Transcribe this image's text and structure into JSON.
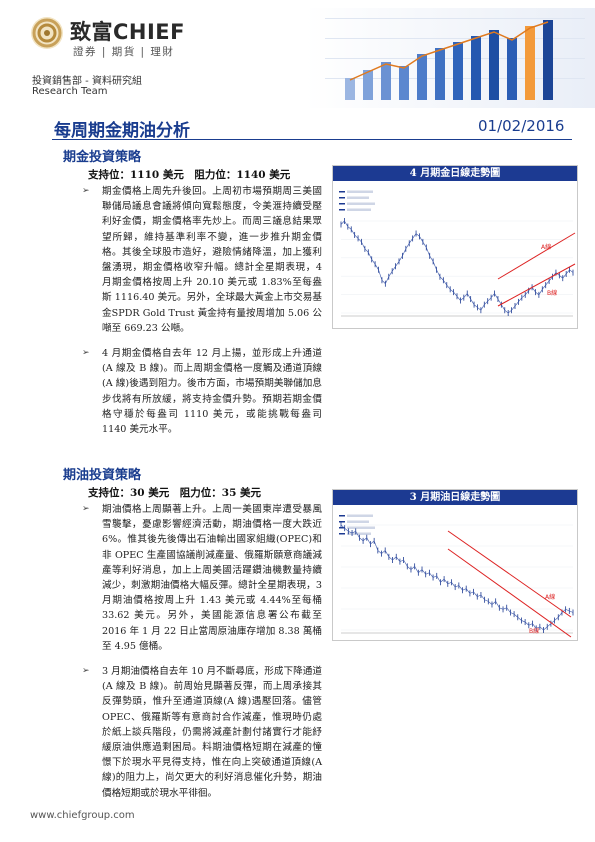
{
  "header": {
    "brand": "致富CHIEF",
    "brand_sub": "證券 | 期貨 | 理財",
    "dept": "投資銷售部 - 資料研究組",
    "team": "Research Team"
  },
  "report": {
    "title": "每周期金期油分析",
    "date": "01/02/2016"
  },
  "gold": {
    "heading": "期金投資策略",
    "levels": "支持位：1110 美元　阻力位：1140 美元",
    "bullets": [
      "期金價格上周先升後回。上周初市場預期周三美國聯儲局議息會議將傾向寬鬆態度，令美滙持續受壓利好金價，期金價格率先炒上。而周三議息結果眾望所歸，維持基準利率不變，進一步推升期金價格。其後全球股市造好，避險情緒降溫，加上獲利盤湧現，期金價格收窄升幅。總計全星期表現，4 月期金價格按周上升 20.10 美元或 1.83%至每盎斯 1116.40 美元。另外，全球最大黃金上市交易基金SPDR Gold Trust 黃金持有量按周增加 5.06 公噸至 669.23 公噸。",
      "4 月期金價格自去年 12 月上揚，並形成上升通道(A 線及 B 線)。而上周期金價格一度觸及通道頂線(A 線)後遇到阻力。後市方面，市場預期美聯儲加息步伐將有所放緩，將支持金價升勢。預期若期金價格守穩於每盎司 1110 美元，或能挑戰每盎司 1140 美元水平。"
    ],
    "chart_title": "4 月期金日線走勢圖",
    "line_a": "A線",
    "line_b": "B線"
  },
  "oil": {
    "heading": "期油投資策略",
    "levels": "支持位：30 美元　阻力位：35 美元",
    "bullets": [
      "期油價格上周顯著上升。上周一美國東岸遭受暴風雪襲擊，憂慮影響經濟活動，期油價格一度大跌近 6%。惟其後先後傳出石油輸出國家組織(OPEC)和非 OPEC 生產國協議削減產量、俄羅斯願意商議減產等利好消息，加上上周美國活躍鑽油機數量持續減少，刺激期油價格大幅反彈。總計全星期表現，3 月期油價格按周上升 1.43 美元或 4.44%至每桶 33.62 美元。另外，美國能源信息署公布截至 2016 年 1 月 22 日止當周原油庫存增加 8.38 萬桶至 4.95 億桶。",
      "3 月期油價格自去年 10 月不斷尋底，形成下降通道(A 線及 B 線)。前周始見顯著反彈，而上周承接其反彈勢頭，惟升至通道頂線(A 線)遇壓回落。儘管 OPEC、俄羅斯等有意商討合作減產，惟現時仍處於紙上談兵階段，仍需將減產計劃付諸實行才能紓緩原油供應過剩困局。料期油價格短期在減產的憧憬下於現水平見得支持，惟在向上突破通道頂線(A 線)的阻力上，尚欠更大的利好消息催化升勢，期油價格短期或於現水平徘徊。"
    ],
    "chart_title": "3 月期油日線走勢圖",
    "line_a": "A線",
    "line_b": "B線"
  },
  "footer": {
    "url": "www.chiefgroup.com"
  },
  "chart_data": [
    {
      "type": "line",
      "title": "4 月期金日線走勢圖",
      "series": [
        {
          "values": [
            1185,
            1190,
            1182,
            1178,
            1170,
            1165,
            1160,
            1150,
            1145,
            1135,
            1128,
            1120,
            1105,
            1100,
            1110,
            1118,
            1125,
            1132,
            1140,
            1150,
            1158,
            1165,
            1172,
            1168,
            1160,
            1152,
            1140,
            1132,
            1120,
            1110,
            1105,
            1098,
            1092,
            1088,
            1082,
            1076,
            1080,
            1086,
            1078,
            1070,
            1066,
            1062,
            1070,
            1075,
            1080,
            1086,
            1078,
            1070,
            1062,
            1058,
            1062,
            1068,
            1074,
            1080,
            1084,
            1090,
            1095,
            1088,
            1084,
            1092,
            1098,
            1104,
            1110,
            1116,
            1112,
            1108,
            1114,
            1120,
            1116
          ]
        }
      ],
      "annotations": [
        "A線",
        "B線"
      ]
    },
    {
      "type": "line",
      "title": "3 月期油日線走勢圖",
      "series": [
        {
          "values": [
            60,
            59,
            58,
            57.5,
            58,
            56,
            55,
            56,
            54,
            55,
            52,
            51,
            52,
            50,
            49,
            50,
            48.5,
            49,
            47,
            46,
            47,
            45,
            46,
            44.5,
            45,
            43.5,
            44,
            42,
            43,
            41.5,
            42,
            40.5,
            41,
            39.5,
            40,
            38.5,
            39,
            37.5,
            38,
            36.5,
            36,
            35,
            36,
            34,
            33.5,
            34,
            32.5,
            32,
            31,
            30,
            29.5,
            28.5,
            29,
            27.5,
            28,
            27,
            28,
            29,
            30,
            31,
            32.5,
            33.5,
            33,
            32.5
          ]
        }
      ],
      "annotations": [
        "A線",
        "B線"
      ]
    }
  ]
}
